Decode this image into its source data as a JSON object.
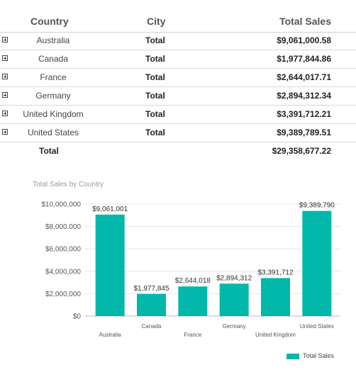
{
  "table": {
    "headers": {
      "country": "Country",
      "city": "City",
      "sales": "Total Sales"
    },
    "rows": [
      {
        "country": "Australia",
        "city": "Total",
        "sales": "$9,061,000.58"
      },
      {
        "country": "Canada",
        "city": "Total",
        "sales": "$1,977,844.86"
      },
      {
        "country": "France",
        "city": "Total",
        "sales": "$2,644,017.71"
      },
      {
        "country": "Germany",
        "city": "Total",
        "sales": "$2,894,312.34"
      },
      {
        "country": "United Kingdom",
        "city": "Total",
        "sales": "$3,391,712.21"
      },
      {
        "country": "United States",
        "city": "Total",
        "sales": "$9,389,789.51"
      }
    ],
    "grand_total": {
      "label": "Total",
      "sales": "$29,358,677.22"
    }
  },
  "chart_data": {
    "type": "bar",
    "title": "Total Sales by Country",
    "categories": [
      "Australia",
      "Canada",
      "France",
      "Germany",
      "United Kingdom",
      "United States"
    ],
    "values": [
      9061001,
      1977845,
      2644018,
      2894312,
      3391712,
      9389790
    ],
    "value_labels": [
      "$9,061,001",
      "$1,977,845",
      "$2,644,018",
      "$2,894,312",
      "$3,391,712",
      "$9,389,790"
    ],
    "ylim": [
      0,
      10000000
    ],
    "yticks": [
      0,
      2000000,
      4000000,
      6000000,
      8000000,
      10000000
    ],
    "ytick_labels": [
      "$0",
      "$2,000,000",
      "$4,000,000",
      "$6,000,000",
      "$8,000,000",
      "$10,000,000"
    ],
    "series": [
      {
        "name": "Total Sales",
        "color": "#01b8aa"
      }
    ],
    "legend_position": "bottom-right",
    "grid": true
  }
}
